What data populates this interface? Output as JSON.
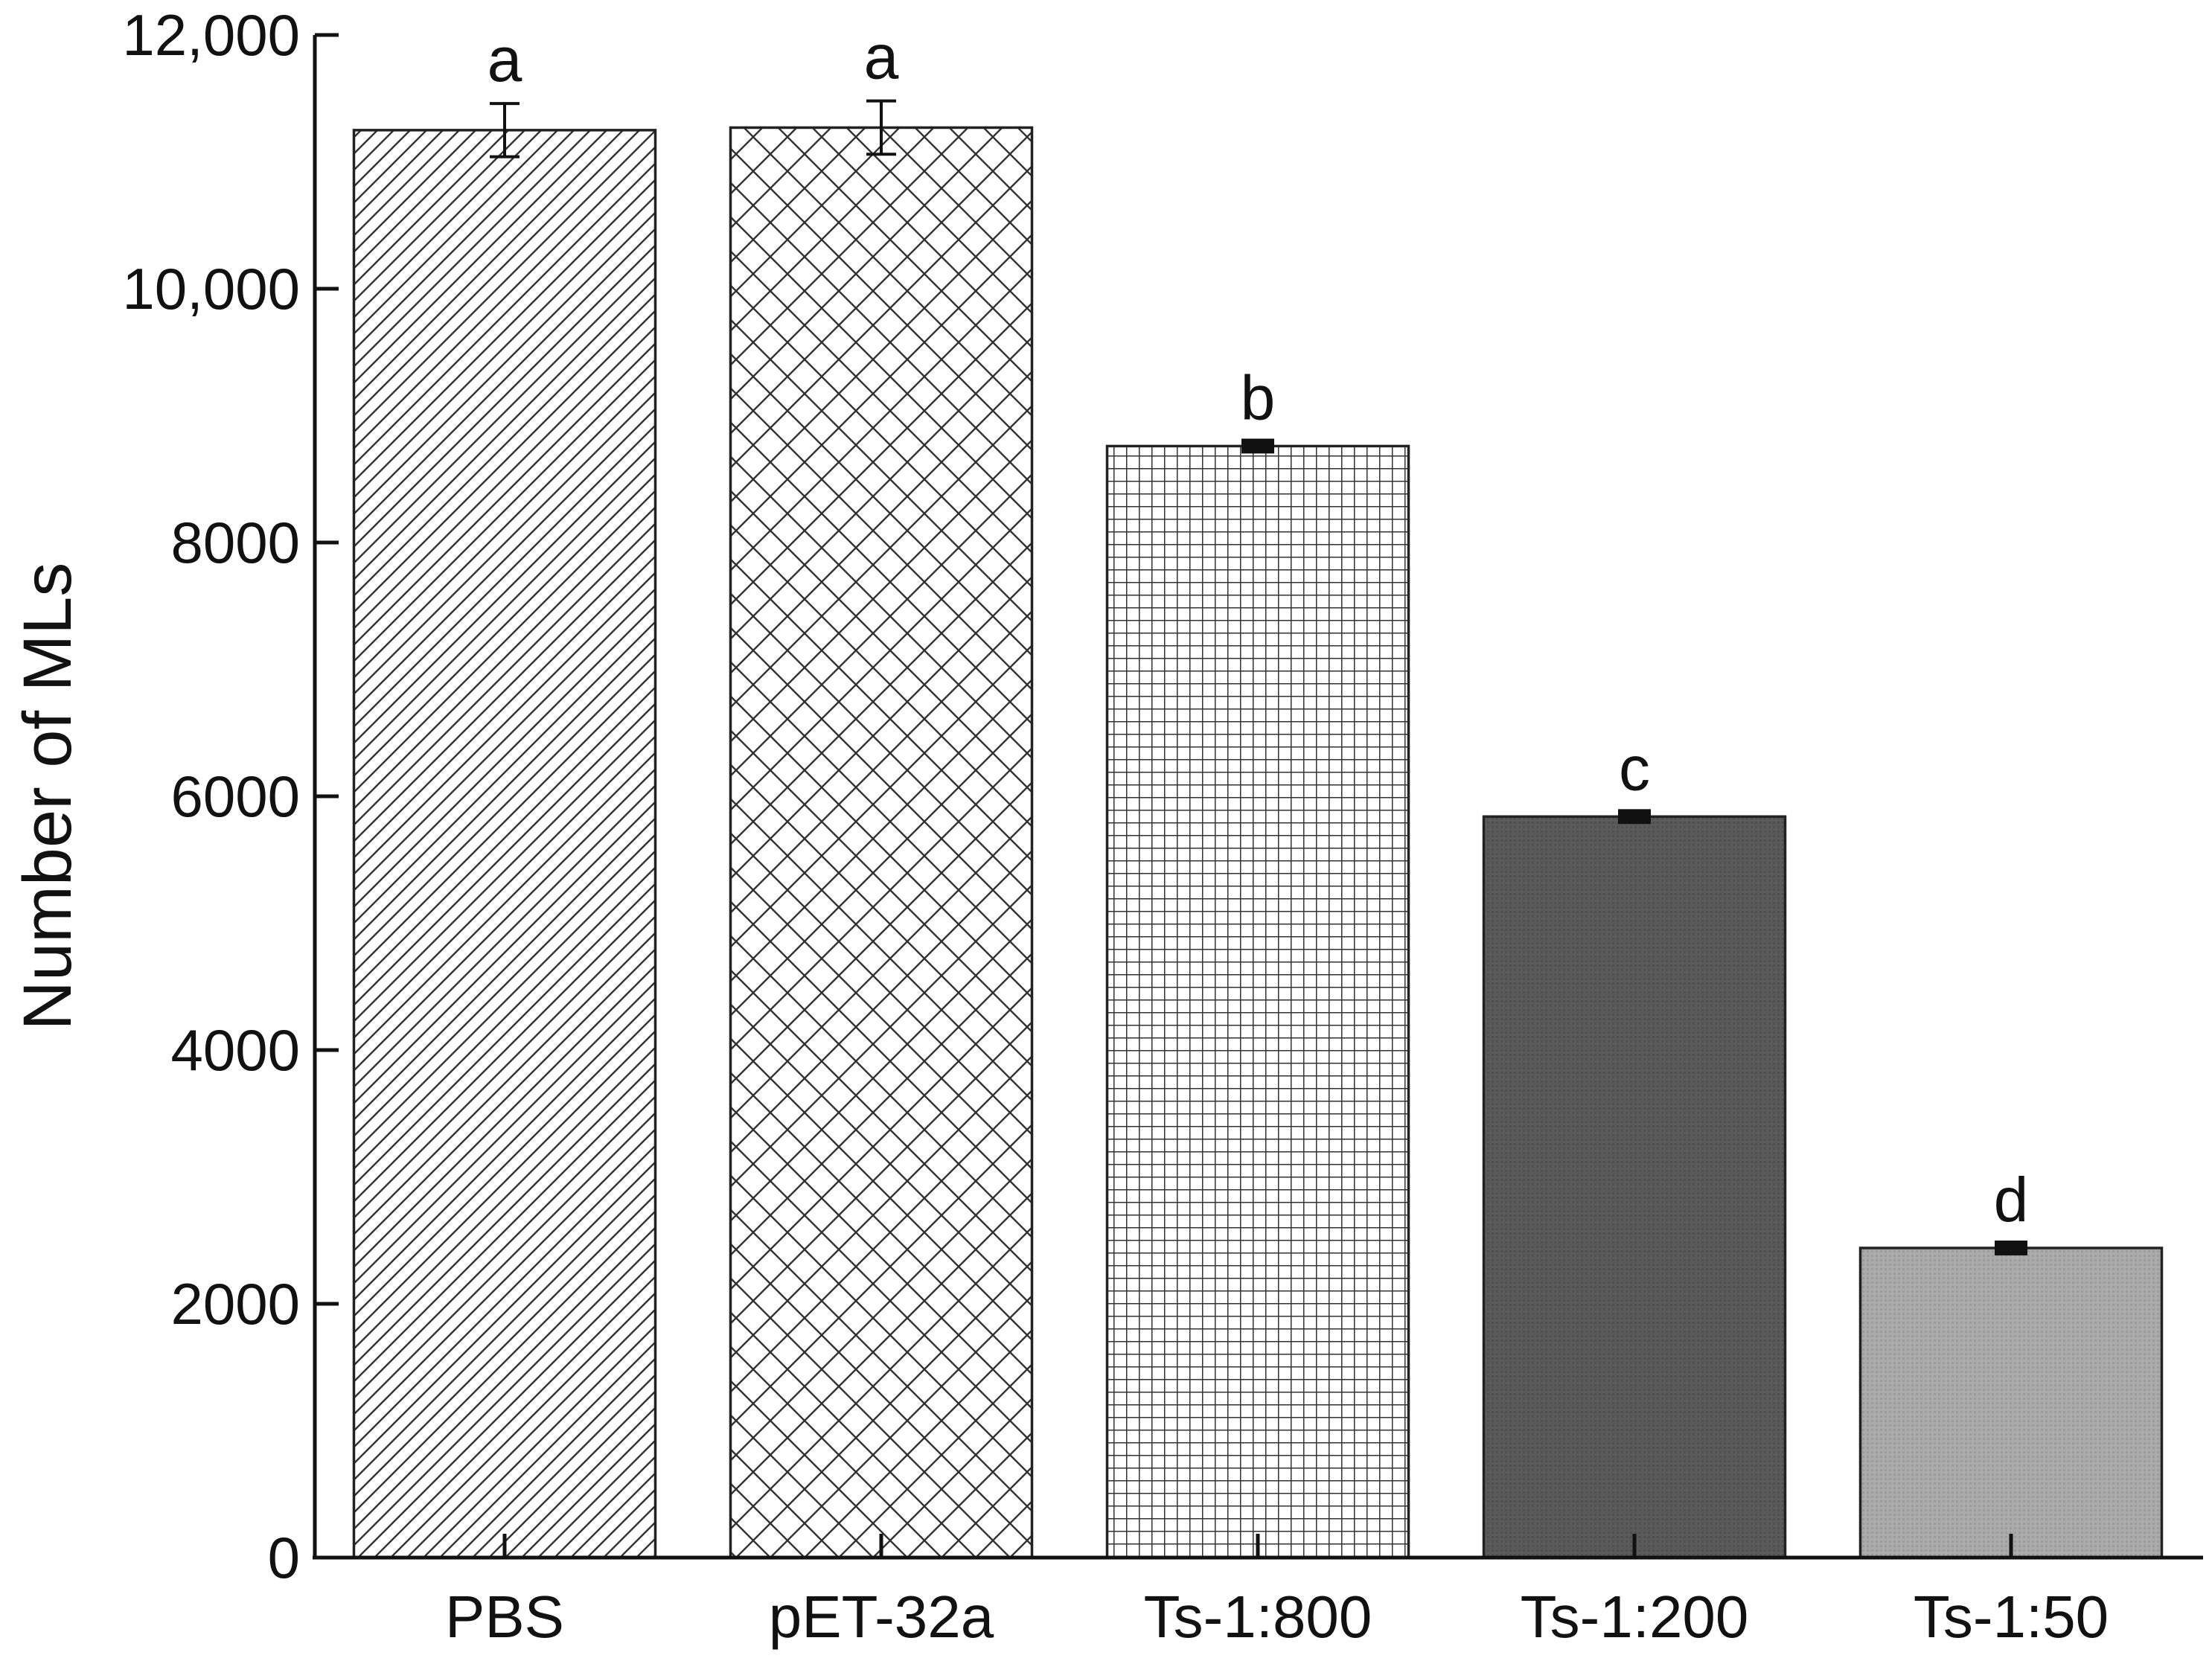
{
  "chart_data": {
    "type": "bar",
    "title": "",
    "xlabel": "",
    "ylabel": "Number of MLs",
    "ylim": [
      0,
      12000
    ],
    "yticks": [
      0,
      2000,
      4000,
      6000,
      8000,
      10000,
      12000
    ],
    "ytick_labels": [
      "0",
      "2000",
      "4000",
      "6000",
      "8000",
      "10,000",
      "12,000"
    ],
    "categories": [
      "PBS",
      "pET-32a",
      "Ts-1:800",
      "Ts-1:200",
      "Ts-1:50"
    ],
    "values": [
      11250,
      11270,
      8760,
      5840,
      2440
    ],
    "errors": [
      210,
      210,
      35,
      35,
      35
    ],
    "significance": [
      "a",
      "a",
      "b",
      "c",
      "d"
    ],
    "bar_patterns": [
      "diagonal",
      "crosshatch",
      "grid",
      "dark-fill",
      "light-fill"
    ],
    "colors": {
      "axis": "#111111",
      "bar_stroke": "#222222",
      "dark_fill": "#5a5a5a",
      "light_fill": "#a9a9a9",
      "hatch": "#333333"
    }
  }
}
